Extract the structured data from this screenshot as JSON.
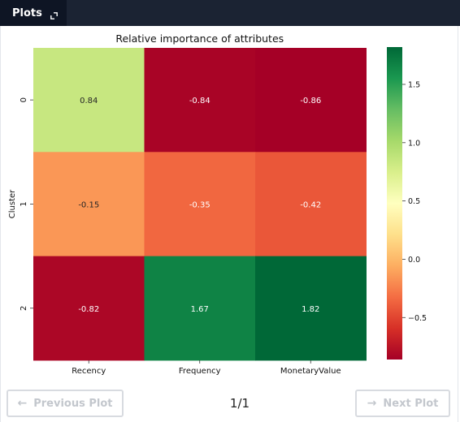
{
  "header": {
    "tab_label": "Plots",
    "expand_icon": "expand-icon"
  },
  "pager": {
    "prev_label": "Previous Plot",
    "next_label": "Next Plot",
    "page_indicator": "1/1",
    "prev_icon": "arrow-left-icon",
    "next_icon": "arrow-right-icon"
  },
  "chart_data": {
    "type": "heatmap",
    "title": "Relative importance of attributes",
    "xlabel": "",
    "ylabel": "Cluster",
    "x_categories": [
      "Recency",
      "Frequency",
      "MonetaryValue"
    ],
    "y_categories": [
      "0",
      "1",
      "2"
    ],
    "values": [
      [
        0.84,
        -0.84,
        -0.86
      ],
      [
        -0.15,
        -0.35,
        -0.42
      ],
      [
        -0.82,
        1.67,
        1.82
      ]
    ],
    "annotations": [
      [
        "0.84",
        "-0.84",
        "-0.86"
      ],
      [
        "-0.15",
        "-0.35",
        "-0.42"
      ],
      [
        "-0.82",
        "1.67",
        "1.82"
      ]
    ],
    "colormap": "RdYlGn",
    "vmin": -0.86,
    "vmax": 1.82,
    "colorbar_ticks": [
      1.5,
      1.0,
      0.5,
      0.0,
      -0.5
    ],
    "colorbar_tick_labels": [
      "1.5",
      "1.0",
      "0.5",
      "0.0",
      "−0.5"
    ],
    "colors": {
      "red": "#a50026",
      "red_mid": "#f46d43",
      "orange": "#fdae61",
      "yellow": "#ffffbf",
      "green_light": "#d9ef8b",
      "green": "#1a9850",
      "green_dark": "#006837"
    }
  }
}
